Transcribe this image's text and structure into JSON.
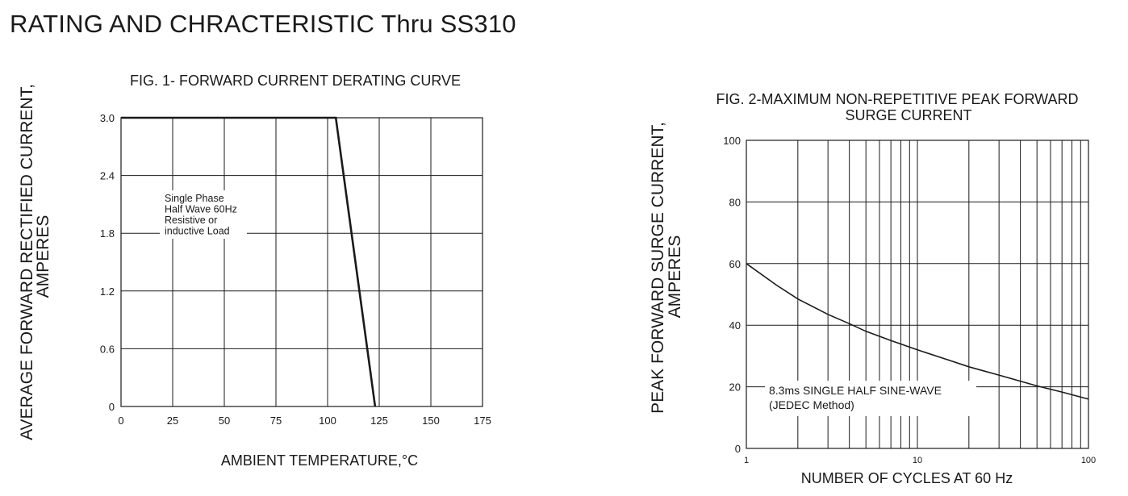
{
  "page": {
    "title": "RATING AND CHRACTERISTIC Thru SS310"
  },
  "chart_data": [
    {
      "type": "line",
      "title": "FIG. 1- FORWARD CURRENT DERATING CURVE",
      "xlabel": "AMBIENT TEMPERATURE,°C",
      "ylabel_lines": [
        "AVERAGE FORWARD RECTIFIED CURRENT,",
        "AMPERES"
      ],
      "xlim": [
        0,
        175
      ],
      "ylim": [
        0,
        3.0
      ],
      "x_ticks": [
        0,
        25,
        50,
        75,
        100,
        125,
        150,
        175
      ],
      "y_ticks": [
        0,
        0.6,
        1.2,
        1.8,
        2.4,
        3.0
      ],
      "y_tick_labels": [
        "0",
        "0.6",
        "1.2",
        "1.8",
        "2.4",
        "3.0"
      ],
      "grid": true,
      "series": [
        {
          "x": [
            0,
            104,
            123
          ],
          "y": [
            3.0,
            3.0,
            0
          ]
        }
      ],
      "annotation": [
        "Single Phase",
        "Half Wave 60Hz",
        "Resistive or",
        "inductive Load"
      ]
    },
    {
      "type": "line",
      "title_lines": [
        "FIG. 2-MAXIMUM NON-REPETITIVE PEAK FORWARD",
        "SURGE CURRENT"
      ],
      "xlabel": "NUMBER OF CYCLES AT 60 Hz",
      "ylabel_lines": [
        "PEAK  FORWARD SURGE CURRENT,",
        "AMPERES"
      ],
      "xscale": "log",
      "xlim": [
        1,
        100
      ],
      "ylim": [
        0,
        100
      ],
      "x_tick_labels": [
        "1",
        "10",
        "100"
      ],
      "x_ticks": [
        1,
        10,
        100
      ],
      "y_ticks": [
        0,
        20,
        40,
        60,
        80,
        100
      ],
      "grid": true,
      "series": [
        {
          "x": [
            1,
            1.5,
            2,
            3,
            4,
            5,
            7,
            10,
            15,
            20,
            30,
            50,
            70,
            100
          ],
          "y": [
            60,
            53,
            48.5,
            43.5,
            40.5,
            38,
            35,
            32,
            28.8,
            26.5,
            23.8,
            20.3,
            18.3,
            16
          ]
        }
      ],
      "annotation": [
        "8.3ms SINGLE HALF SINE-WAVE",
        "(JEDEC Method)"
      ]
    }
  ]
}
